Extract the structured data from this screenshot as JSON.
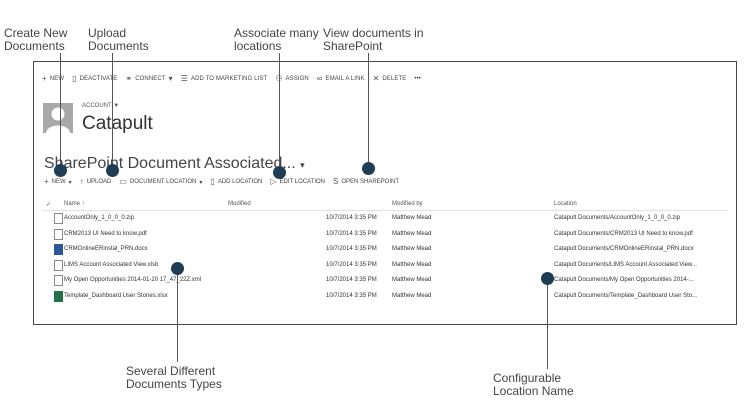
{
  "callouts": [
    {
      "text": "Create New\nDocuments"
    },
    {
      "text": "Upload\nDocuments"
    },
    {
      "text": "Associate many\nlocations"
    },
    {
      "text": "View documents in\nSharePoint"
    },
    {
      "text": "Several Different\nDocuments Types"
    },
    {
      "text": "Configurable\nLocation Name"
    }
  ],
  "command_bar": {
    "new": "NEW",
    "deactivate": "DEACTIVATE",
    "connect": "CONNECT",
    "add_to_marketing_list": "ADD TO MARKETING LIST",
    "assign": "ASSIGN",
    "email_a_link": "EMAIL A LINK",
    "delete": "DELETE",
    "more": "•••"
  },
  "record": {
    "type": "ACCOUNT",
    "name": "Catapult"
  },
  "view": {
    "title": "SharePoint Document Associated..."
  },
  "sub_command": {
    "new": "NEW",
    "upload": "UPLOAD",
    "document_location": "DOCUMENT LOCATION",
    "add_location": "ADD LOCATION",
    "edit_location": "EDIT LOCATION",
    "open_sharepoint": "OPEN SHAREPOINT"
  },
  "grid": {
    "columns": {
      "name": "Name ↑",
      "modified": "Modified",
      "modified_by": "Modified by",
      "location": "Location"
    },
    "rows": [
      {
        "icon": "generic",
        "name": "AccountOnly_1_0_0_0.zip",
        "modified": "10/7/2014 3:35 PM",
        "modified_by": "Matthew Mead",
        "location": "Catapult Documents/AccountOnly_1_0_0_0.zip"
      },
      {
        "icon": "generic",
        "name": "CRM2013 UI Need to know.pdf",
        "modified": "10/7/2014 3:35 PM",
        "modified_by": "Matthew Mead",
        "location": "Catapult Documents/CRM2013 UI Need to know.pdf"
      },
      {
        "icon": "word",
        "name": "CRMOnlineERinstal_PRN.docx",
        "modified": "10/7/2014 3:35 PM",
        "modified_by": "Matthew Mead",
        "location": "Catapult Documents/CRMOnlineERinstal_PRN.docx"
      },
      {
        "icon": "generic",
        "name": "LIMS Account Associated View.xlsb",
        "modified": "10/7/2014 3:35 PM",
        "modified_by": "Matthew Mead",
        "location": "Catapult Documents/LIMS Account Associated View..."
      },
      {
        "icon": "generic",
        "name": "My Open Opportunities 2014-01-20 17_47_22Z.xml",
        "modified": "10/7/2014 3:35 PM",
        "modified_by": "Matthew Mead",
        "location": "Catapult Documents/My Open Opportunities 2014-..."
      },
      {
        "icon": "excel",
        "name": "Template_Dashboard User Stories.xlsx",
        "modified": "10/7/2014 3:35 PM",
        "modified_by": "Matthew Mead",
        "location": "Catapult Documents/Template_Dashboard User Sto..."
      }
    ]
  },
  "colors": {
    "marker": "#1f3d55",
    "frame_border": "#4a4a4a"
  }
}
